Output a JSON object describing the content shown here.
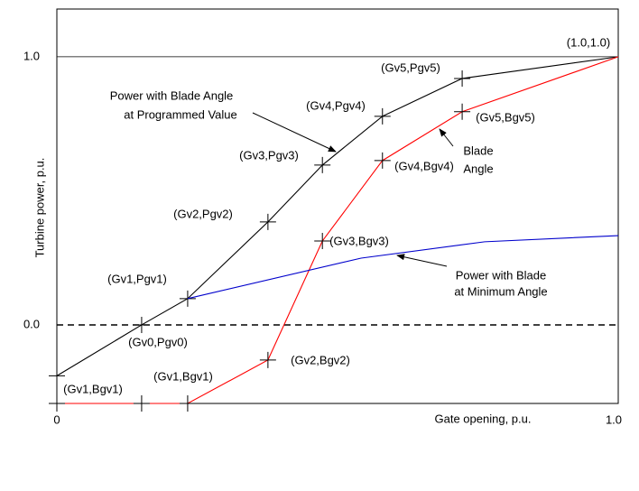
{
  "chart_data": {
    "type": "line",
    "xlabel": "Gate opening, p.u.",
    "ylabel": "Turbine power, p.u.",
    "xlim": [
      0,
      1
    ],
    "ylim": [
      -0.293,
      1.178
    ],
    "xticks": [
      0,
      {
        "value": 1,
        "label": "1.0"
      }
    ],
    "yticks": [
      {
        "value": 1,
        "label": "1.0"
      },
      {
        "value": 0,
        "label": "0.0"
      }
    ],
    "series": [
      {
        "color": "#000000",
        "marker": "+",
        "x": [
          0,
          0.151,
          0.233,
          0.376,
          0.473,
          0.58,
          0.722,
          1
        ],
        "values": [
          -0.19,
          0,
          0.098,
          0.384,
          0.596,
          0.778,
          0.919,
          1
        ]
      },
      {
        "color": "#ff0000",
        "marker": "+",
        "x": [
          0,
          0.151,
          0.233,
          0.376,
          0.473,
          0.58,
          0.722,
          1
        ],
        "values": [
          -0.293,
          -0.293,
          -0.293,
          -0.131,
          0.313,
          0.613,
          0.795,
          1
        ]
      },
      {
        "color": "#0000cc",
        "marker": "none",
        "x": [
          0.233,
          0.542,
          0.762,
          1
        ],
        "values": [
          0.098,
          0.249,
          0.31,
          0.333
        ]
      }
    ],
    "annotations": [
      "(1.0,1.0)",
      "(Gv5,Pgv5)",
      "Power with Blade Angle",
      "at Programmed Value",
      "(Gv4,Pgv4)",
      "(Gv5,Bgv5)",
      "Blade",
      "Angle",
      "(Gv3,Pgv3)",
      "(Gv4,Bgv4)",
      "(Gv2,Pgv2)",
      "(Gv3,Bgv3)",
      "Power with Blade",
      "at Minimum Angle",
      "(Gv1,Pgv1)",
      "(Gv0,Pgv0)",
      "(Gv2,Bgv2)",
      "(Gv1,Bgv1)",
      "(Gv1,Bgv1)"
    ]
  }
}
